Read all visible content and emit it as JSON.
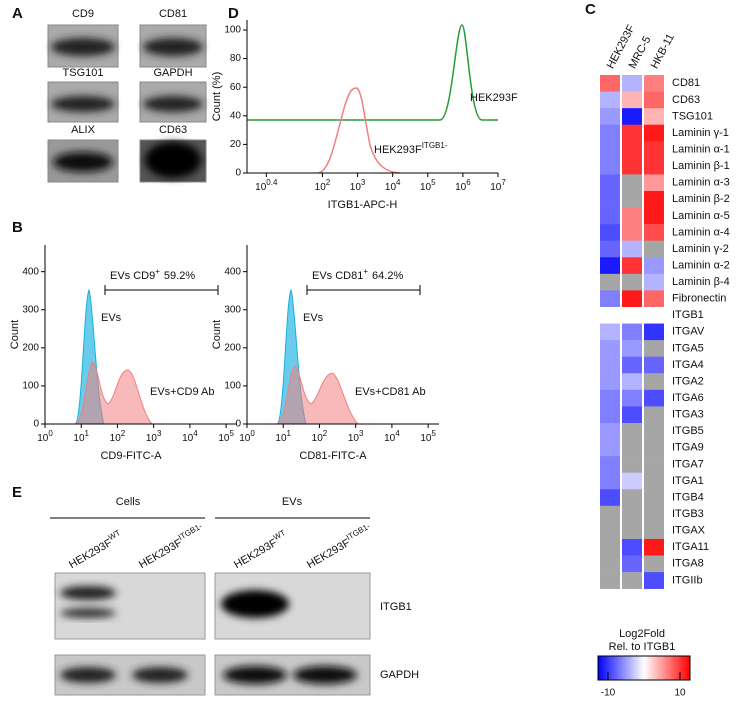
{
  "panel_labels": [
    "A",
    "B",
    "C",
    "D",
    "E"
  ],
  "a": {
    "labels": [
      "CD9",
      "CD81",
      "TSG101",
      "GAPDH",
      "ALIX",
      "CD63"
    ]
  },
  "b": {
    "gate": {
      "text": "EVs CD9",
      "sup": "+",
      "pct": "59.2%"
    },
    "legend_evs": "EVs",
    "legend_ab": "EVs+CD9 Ab",
    "ylabel": "Count",
    "xlabel": "CD9-FITC-A",
    "ylim": [
      0,
      470
    ],
    "yticks": [
      0,
      100,
      200,
      300,
      400
    ],
    "xlim": [
      0,
      5.3
    ],
    "xticks": [
      {
        "value": 0,
        "base": "10",
        "exp": "0"
      },
      {
        "value": 1,
        "base": "10",
        "exp": "1"
      },
      {
        "value": 2,
        "base": "10",
        "exp": "2"
      },
      {
        "value": 3,
        "base": "10",
        "exp": "3"
      },
      {
        "value": 4,
        "base": "10",
        "exp": "4"
      },
      {
        "value": 5,
        "base": "10",
        "exp": "5"
      }
    ]
  },
  "d_top": {
    "ylabel": "Count (%)",
    "xlabel": "ITGB1-APC-H",
    "legend_wt": "HEK293F",
    "legend_ko": "HEK293F",
    "legend_ko_sup": "ITGB1-",
    "ylim": [
      0,
      107
    ],
    "yticks": [
      0,
      20,
      40,
      60,
      80,
      100
    ],
    "xlim": [
      -0.15,
      7
    ],
    "xticks": [
      {
        "value": 0.4,
        "base": "10",
        "exp": "0.4"
      },
      {
        "value": 2,
        "base": "10",
        "exp": "2"
      },
      {
        "value": 3,
        "base": "10",
        "exp": "3"
      },
      {
        "value": 4,
        "base": "10",
        "exp": "4"
      },
      {
        "value": 5,
        "base": "10",
        "exp": "5"
      },
      {
        "value": 6,
        "base": "10",
        "exp": "6"
      },
      {
        "value": 7,
        "base": "10",
        "exp": "7"
      }
    ]
  },
  "d_bottom": {
    "gate": {
      "text": "EVs CD81",
      "sup": "+",
      "pct": "64.2%"
    },
    "legend_evs": "EVs",
    "legend_ab": "EVs+CD81 Ab",
    "ylabel": "Count",
    "xlabel": "CD81-FITC-A",
    "ylim": [
      0,
      470
    ],
    "yticks": [
      0,
      100,
      200,
      300,
      400
    ],
    "xlim": [
      0,
      5.3
    ],
    "xticks": [
      {
        "value": 0,
        "base": "10",
        "exp": "0"
      },
      {
        "value": 1,
        "base": "10",
        "exp": "1"
      },
      {
        "value": 2,
        "base": "10",
        "exp": "2"
      },
      {
        "value": 3,
        "base": "10",
        "exp": "3"
      },
      {
        "value": 4,
        "base": "10",
        "exp": "4"
      },
      {
        "value": 5,
        "base": "10",
        "exp": "5"
      }
    ]
  },
  "c": {
    "columns": [
      "HEK293F",
      "MRC-5",
      "HKB-11"
    ],
    "rows": [
      "CD81",
      "CD63",
      "TSG101",
      "Laminin γ-1",
      "Laminin α-1",
      "Laminin β-1",
      "Laminin α-3",
      "Laminin β-2",
      "Laminin α-5",
      "Laminin α-4",
      "Laminin γ-2",
      "Laminin α-2",
      "Laminin β-4",
      "Fibronectin",
      "ITGB1",
      "ITGAV",
      "ITGA5",
      "ITGA4",
      "ITGA2",
      "ITGA6",
      "ITGA3",
      "ITGB5",
      "ITGA9",
      "ITGA7",
      "ITGA1",
      "ITGB4",
      "ITGB3",
      "ITGAX",
      "ITGA11",
      "ITGA8",
      "ITGIIb"
    ],
    "values": [
      [
        6,
        -3,
        -4,
        -5,
        -5,
        -5,
        -6,
        -6,
        -6,
        -7,
        -6,
        -9,
        null,
        -5,
        0,
        -3,
        -4,
        -4,
        -4,
        -5,
        -5,
        -4,
        -4,
        -5,
        -5,
        -7,
        null,
        null,
        null,
        null,
        null
      ],
      [
        -3,
        3,
        -9,
        8,
        8,
        8,
        null,
        null,
        5,
        5,
        -3,
        8,
        null,
        9,
        0,
        -5,
        -4,
        -6,
        -3,
        -5,
        -7,
        null,
        null,
        null,
        -2,
        null,
        null,
        null,
        -7,
        -6,
        null
      ],
      [
        5,
        6,
        3,
        9,
        8,
        8,
        4,
        9,
        9,
        7,
        null,
        -4,
        -3,
        6,
        0,
        -8,
        null,
        -6,
        null,
        -7,
        null,
        null,
        null,
        null,
        null,
        null,
        null,
        null,
        9,
        null,
        -7
      ]
    ],
    "colorbar_title": "Log2Fold",
    "colorbar_subtitle": "Rel. to ITGB1",
    "clim": [
      -10,
      10
    ],
    "cticks": [
      -10,
      10
    ]
  },
  "e": {
    "groups": [
      "Cells",
      "EVs"
    ],
    "lane_base": "HEK293F",
    "lanes": [
      "WT",
      "ITGB1-",
      "WT",
      "ITGB1-"
    ],
    "blots": [
      "ITGB1",
      "GAPDH"
    ]
  }
}
